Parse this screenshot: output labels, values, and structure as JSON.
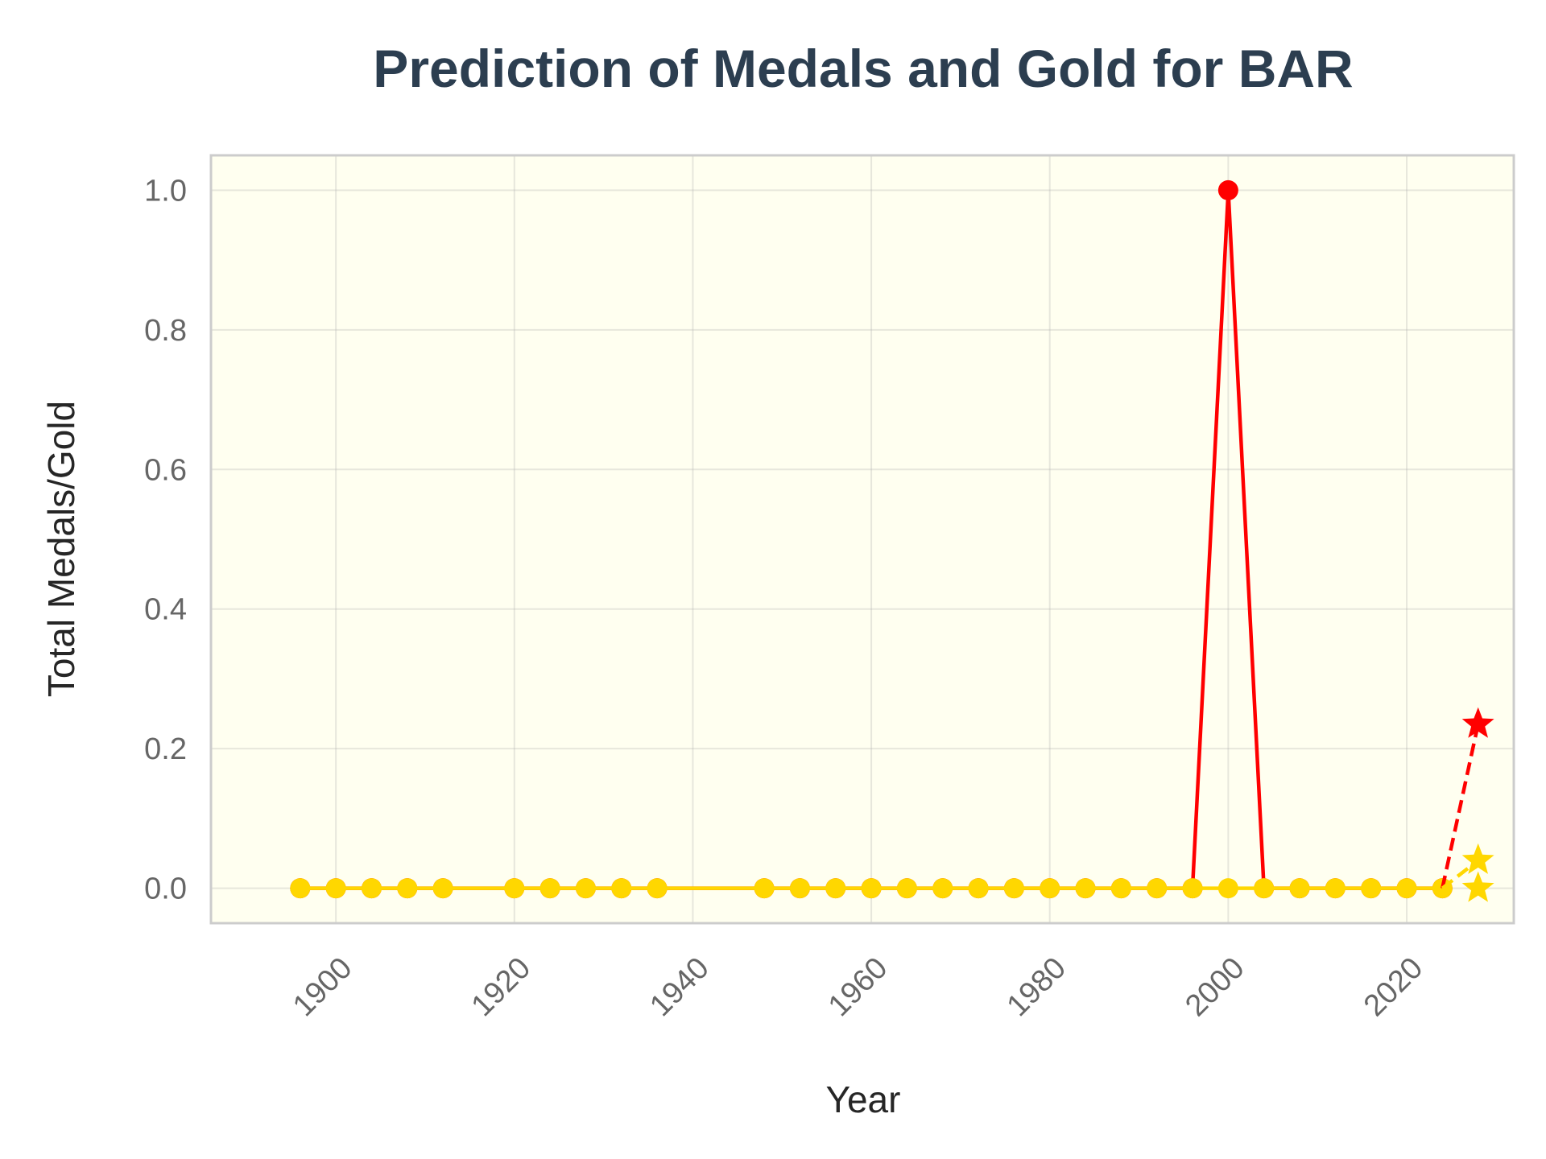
{
  "chart_data": {
    "type": "line",
    "title": "Prediction of Medals and Gold for BAR",
    "xlabel": "Year",
    "ylabel": "Total Medals/Gold",
    "xlim": [
      1886,
      2032
    ],
    "ylim": [
      -0.05,
      1.05
    ],
    "xticks": [
      1900,
      1920,
      1940,
      1960,
      1980,
      2000,
      2020
    ],
    "yticks": [
      0.0,
      0.2,
      0.4,
      0.6,
      0.8,
      1.0
    ],
    "xtick_labels": [
      "1900",
      "1920",
      "1940",
      "1960",
      "1980",
      "2000",
      "2020"
    ],
    "ytick_labels": [
      "0.0",
      "0.2",
      "0.4",
      "0.6",
      "0.8",
      "1.0"
    ],
    "grid": true,
    "background_color": "#fffff0",
    "series": [
      {
        "role": "total-medals",
        "color": "#ff0000",
        "marker": "circle",
        "line": "solid",
        "x": [
          1896,
          1900,
          1904,
          1908,
          1912,
          1920,
          1924,
          1928,
          1932,
          1936,
          1948,
          1952,
          1956,
          1960,
          1964,
          1968,
          1972,
          1976,
          1980,
          1984,
          1988,
          1992,
          1996,
          2000,
          2004,
          2008,
          2012,
          2016,
          2020,
          2024
        ],
        "y": [
          0,
          0,
          0,
          0,
          0,
          0,
          0,
          0,
          0,
          0,
          0,
          0,
          0,
          0,
          0,
          0,
          0,
          0,
          0,
          0,
          0,
          0,
          0,
          1,
          0,
          0,
          0,
          0,
          0,
          0
        ]
      },
      {
        "role": "gold",
        "color": "#ffd700",
        "marker": "circle",
        "line": "solid",
        "x": [
          1896,
          1900,
          1904,
          1908,
          1912,
          1920,
          1924,
          1928,
          1932,
          1936,
          1948,
          1952,
          1956,
          1960,
          1964,
          1968,
          1972,
          1976,
          1980,
          1984,
          1988,
          1992,
          1996,
          2000,
          2004,
          2008,
          2012,
          2016,
          2020,
          2024
        ],
        "y": [
          0,
          0,
          0,
          0,
          0,
          0,
          0,
          0,
          0,
          0,
          0,
          0,
          0,
          0,
          0,
          0,
          0,
          0,
          0,
          0,
          0,
          0,
          0,
          0,
          0,
          0,
          0,
          0,
          0,
          0
        ]
      }
    ],
    "predictions": [
      {
        "role": "total-medals-prediction",
        "color": "#ff0000",
        "marker": "star",
        "line": "dashed",
        "x": [
          2024,
          2028
        ],
        "y": [
          0,
          0.235
        ]
      },
      {
        "role": "gold-prediction",
        "color": "#ffd700",
        "marker": "star",
        "line": "dashed",
        "x": [
          2024,
          2028
        ],
        "y": [
          0,
          0.04
        ]
      },
      {
        "role": "gold-prediction-alt",
        "color": "#ffd700",
        "marker": "star",
        "line": "none",
        "x": [
          2028
        ],
        "y": [
          0
        ]
      }
    ]
  }
}
